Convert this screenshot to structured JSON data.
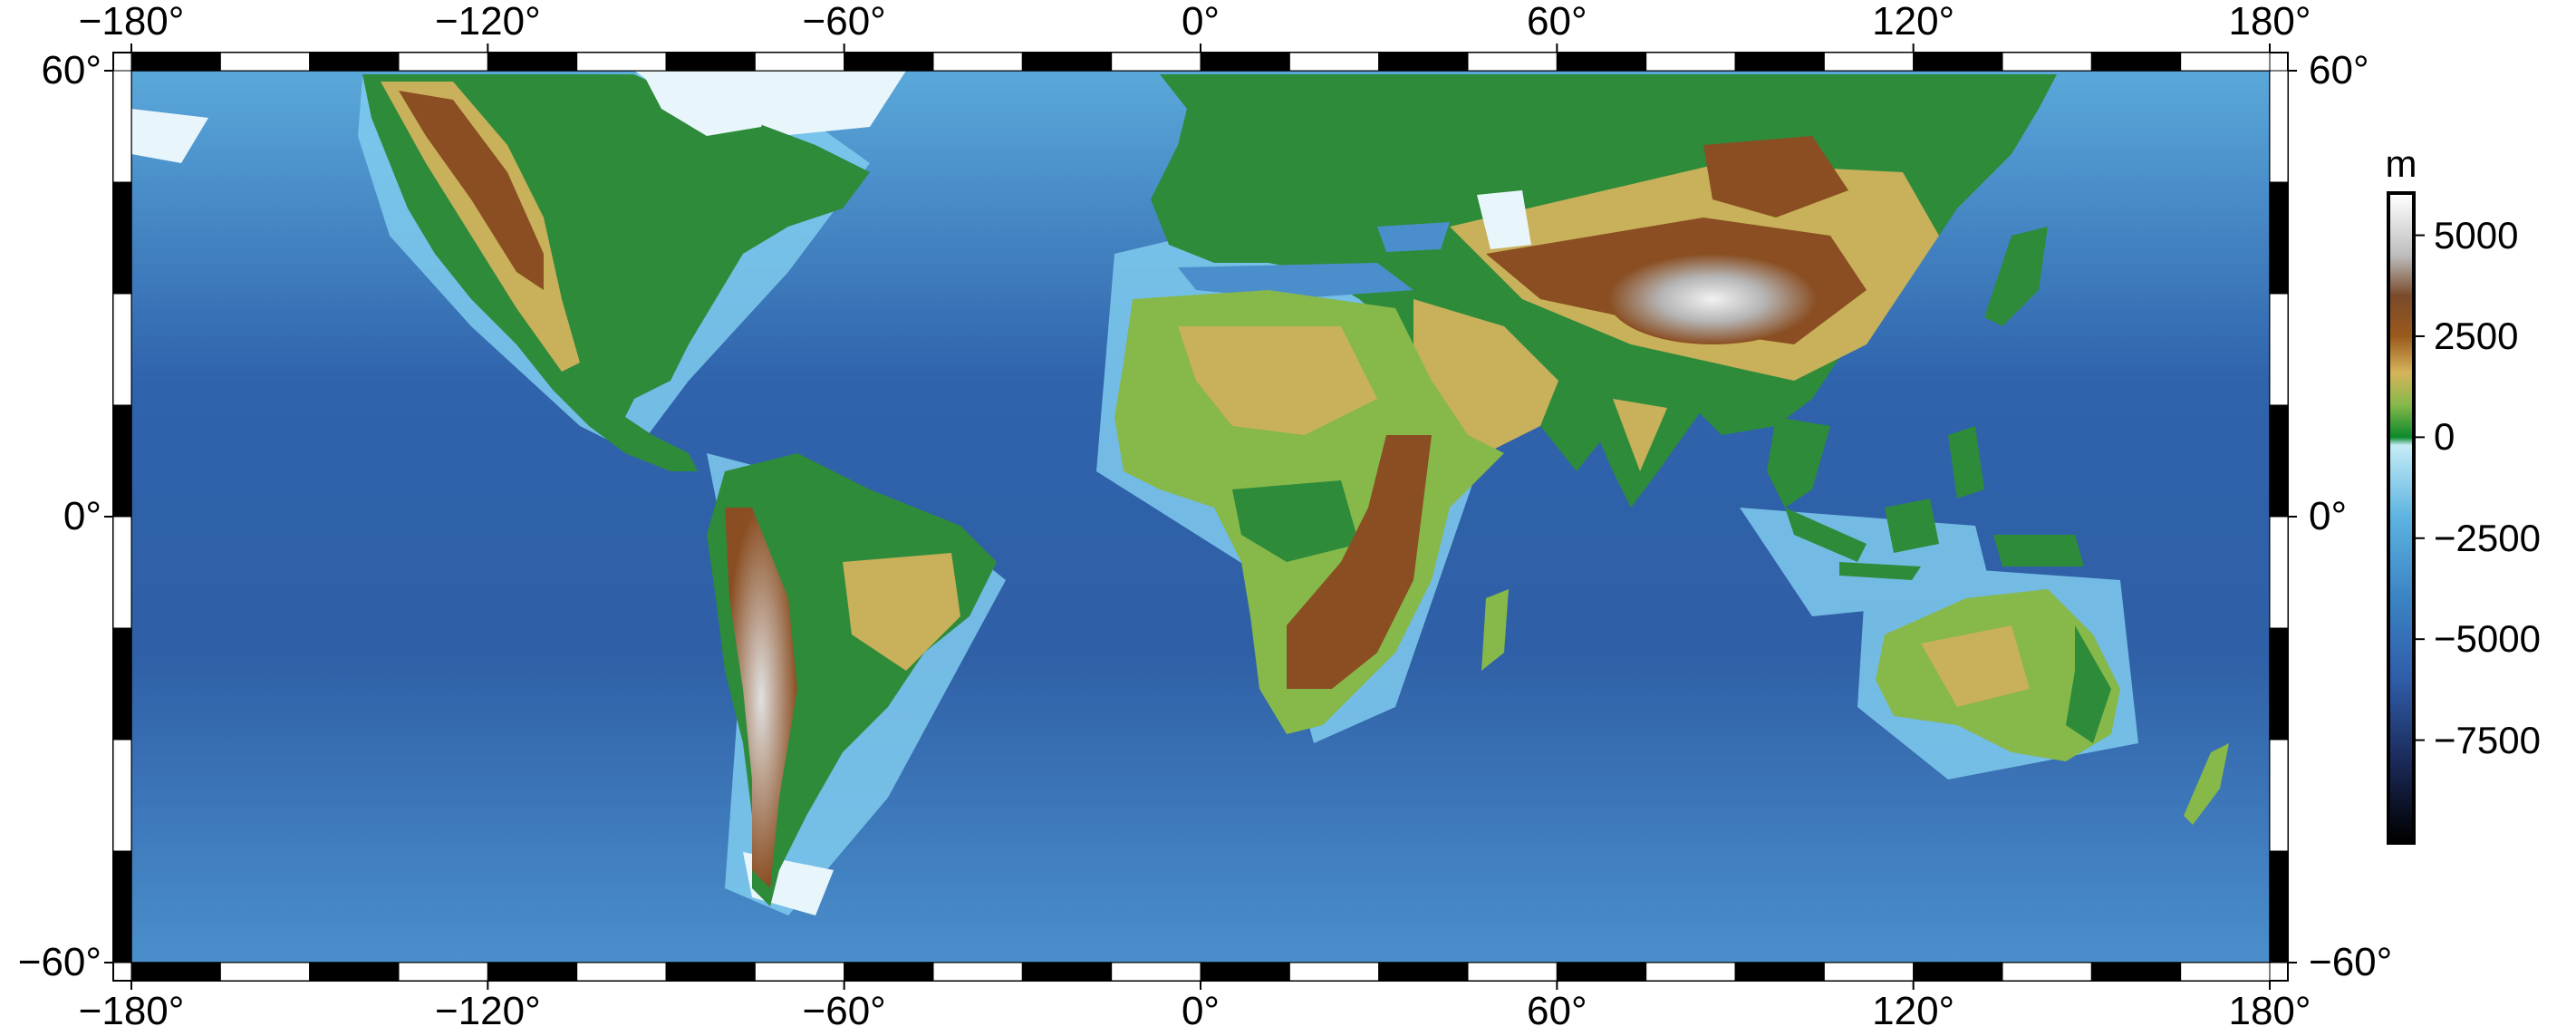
{
  "map": {
    "projection": "plate-carree",
    "lon_range": [
      -180,
      180
    ],
    "lat_range": [
      -60,
      60
    ],
    "frame_style": "fancy-checkered",
    "frame_tick_interval_deg": 15,
    "lon_ticks": [
      {
        "value": -180,
        "label": "−180°"
      },
      {
        "value": -120,
        "label": "−120°"
      },
      {
        "value": -60,
        "label": "−60°"
      },
      {
        "value": 0,
        "label": "0°"
      },
      {
        "value": 60,
        "label": "60°"
      },
      {
        "value": 120,
        "label": "120°"
      },
      {
        "value": 180,
        "label": "180°"
      }
    ],
    "lat_ticks": [
      {
        "value": 60,
        "label": "60°"
      },
      {
        "value": 0,
        "label": "0°"
      },
      {
        "value": -60,
        "label": "−60°"
      }
    ]
  },
  "colorbar": {
    "unit": "m",
    "range": [
      -10000,
      6000
    ],
    "ticks": [
      {
        "value": 5000,
        "label": "5000"
      },
      {
        "value": 2500,
        "label": "2500"
      },
      {
        "value": 0,
        "label": "0"
      },
      {
        "value": -2500,
        "label": "−2500"
      },
      {
        "value": -5000,
        "label": "−5000"
      },
      {
        "value": -7500,
        "label": "−7500"
      }
    ],
    "stops": [
      {
        "value": -10000,
        "color": "#000000"
      },
      {
        "value": -8000,
        "color": "#1b2a5a"
      },
      {
        "value": -6000,
        "color": "#2f5da8"
      },
      {
        "value": -4000,
        "color": "#3b83c4"
      },
      {
        "value": -2000,
        "color": "#5cb3e0"
      },
      {
        "value": -200,
        "color": "#c6ecf6"
      },
      {
        "value": 0,
        "color": "#0a8a2c"
      },
      {
        "value": 800,
        "color": "#86b84a"
      },
      {
        "value": 1600,
        "color": "#d6b45a"
      },
      {
        "value": 2500,
        "color": "#9a5a1c"
      },
      {
        "value": 3500,
        "color": "#7a4a2a"
      },
      {
        "value": 4500,
        "color": "#bdbdbd"
      },
      {
        "value": 6000,
        "color": "#ffffff"
      }
    ]
  },
  "colors": {
    "deep_ocean": "#2f5fa6",
    "mid_ocean": "#3f7fc2",
    "shelf": "#8fd3ef",
    "ice": "#e8f6fb",
    "lowland": "#2e8b3a",
    "upland": "#c9b05a",
    "mountain": "#8a4e22",
    "peak": "#e6e6e6"
  }
}
